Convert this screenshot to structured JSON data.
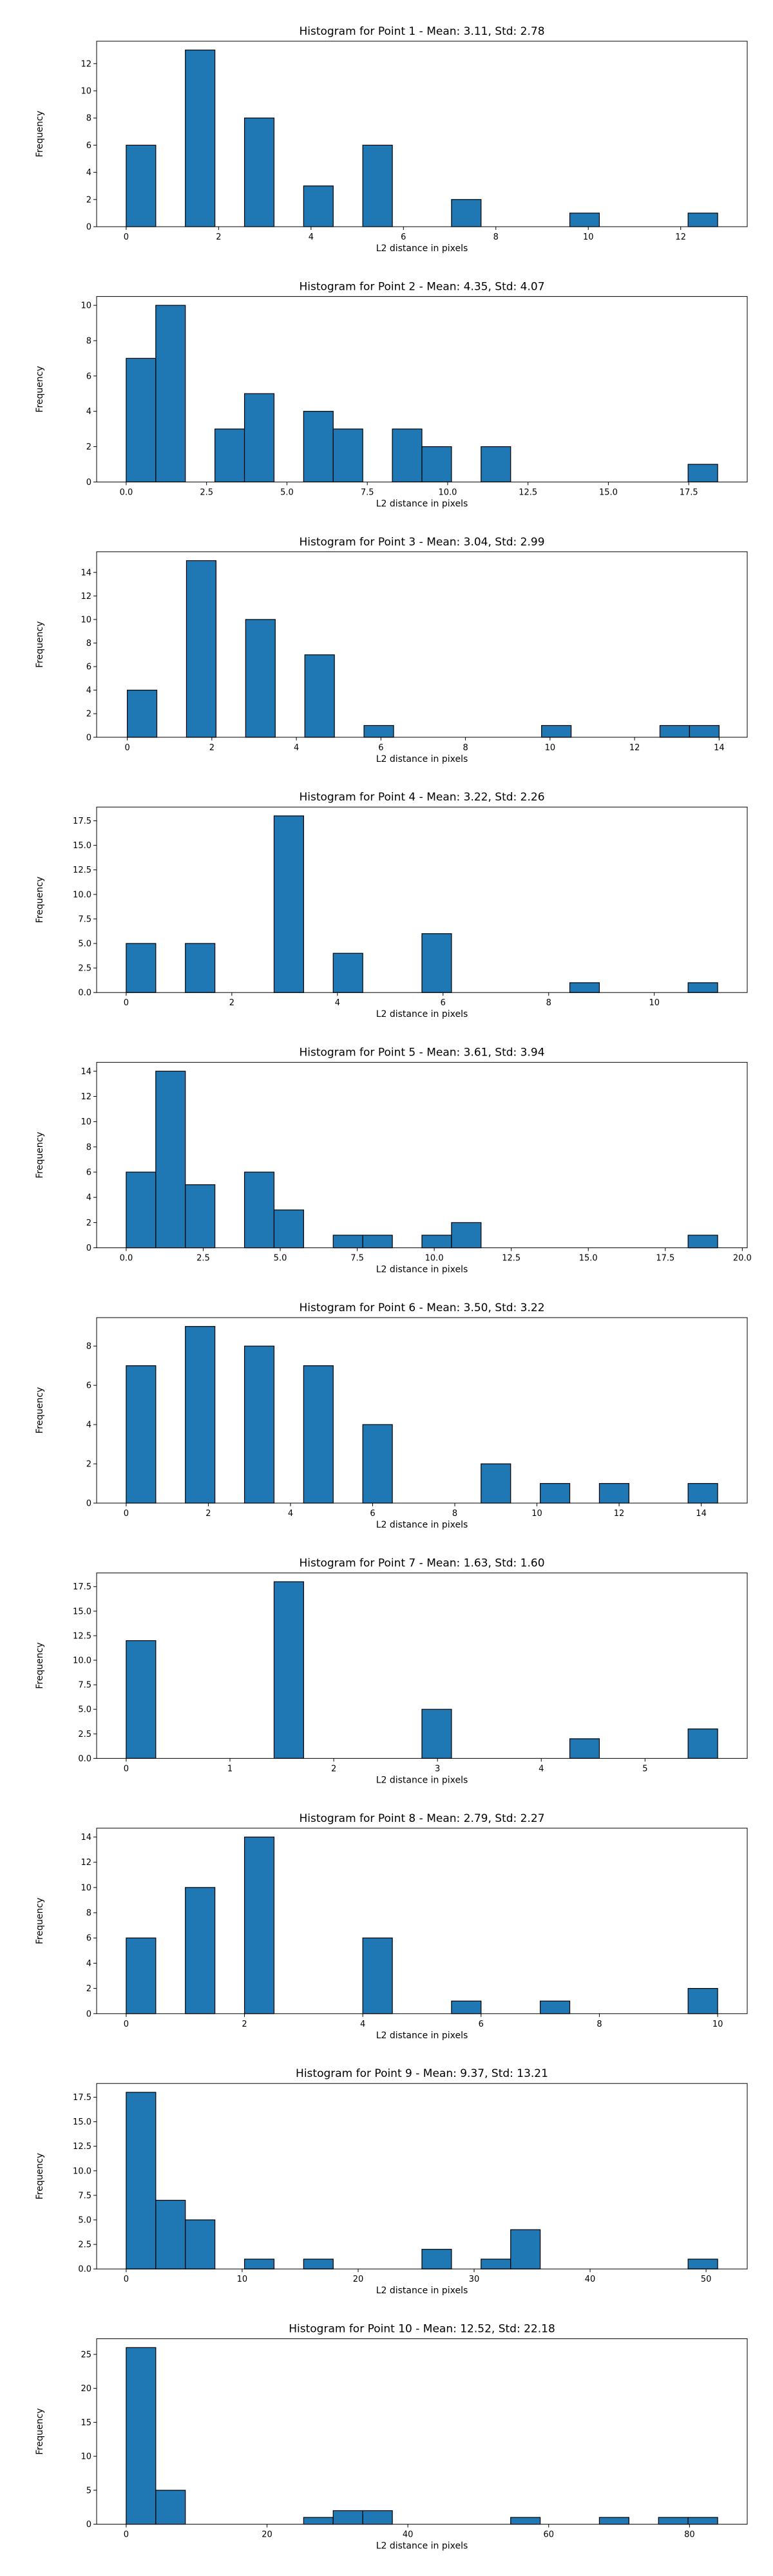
{
  "colors": {
    "bar_fill": "#1f77b4",
    "bar_edge": "#000000",
    "axes": "#000000",
    "background": "#ffffff"
  },
  "chart_data": [
    {
      "type": "bar",
      "title": "Histogram for Point 1 - Mean: 3.11, Std: 2.78",
      "xlabel": "L2 distance in pixels",
      "ylabel": "Frequency",
      "xlim": [
        -0.64,
        13.44
      ],
      "ylim": [
        0,
        13.65
      ],
      "xticks": [
        0,
        2,
        4,
        6,
        8,
        10,
        12
      ],
      "xtick_labels": [
        "0",
        "2",
        "4",
        "6",
        "8",
        "10",
        "12"
      ],
      "yticks": [
        0,
        2,
        4,
        6,
        8,
        10,
        12
      ],
      "ytick_labels": [
        "0",
        "2",
        "4",
        "6",
        "8",
        "10",
        "12"
      ],
      "bins": [
        [
          0,
          0.64,
          6
        ],
        [
          1.28,
          1.92,
          13
        ],
        [
          2.56,
          3.2,
          8
        ],
        [
          3.84,
          4.48,
          3
        ],
        [
          5.12,
          5.76,
          6
        ],
        [
          7.04,
          7.68,
          2
        ],
        [
          9.6,
          10.24,
          1
        ],
        [
          12.16,
          12.8,
          1
        ]
      ]
    },
    {
      "type": "bar",
      "title": "Histogram for Point 2 - Mean: 4.35, Std: 4.07",
      "xlabel": "L2 distance in pixels",
      "ylabel": "Frequency",
      "xlim": [
        -0.92,
        19.32
      ],
      "ylim": [
        0,
        10.5
      ],
      "xticks": [
        0,
        2.5,
        5,
        7.5,
        10,
        12.5,
        15,
        17.5
      ],
      "xtick_labels": [
        "0.0",
        "2.5",
        "5.0",
        "7.5",
        "10.0",
        "12.5",
        "15.0",
        "17.5"
      ],
      "yticks": [
        0,
        2,
        4,
        6,
        8,
        10
      ],
      "ytick_labels": [
        "0",
        "2",
        "4",
        "6",
        "8",
        "10"
      ],
      "bins": [
        [
          0,
          0.92,
          7
        ],
        [
          0.92,
          1.84,
          10
        ],
        [
          2.76,
          3.68,
          3
        ],
        [
          3.68,
          4.6,
          5
        ],
        [
          5.52,
          6.44,
          4
        ],
        [
          6.44,
          7.36,
          3
        ],
        [
          8.28,
          9.2,
          3
        ],
        [
          9.2,
          10.12,
          2
        ],
        [
          11.04,
          11.96,
          2
        ],
        [
          17.48,
          18.4,
          1
        ]
      ]
    },
    {
      "type": "bar",
      "title": "Histogram for Point 3 - Mean: 3.04, Std: 2.99",
      "xlabel": "L2 distance in pixels",
      "ylabel": "Frequency",
      "xlim": [
        -0.725,
        14.665
      ],
      "ylim": [
        0,
        15.75
      ],
      "xticks": [
        0,
        2,
        4,
        6,
        8,
        10,
        12,
        14
      ],
      "xtick_labels": [
        "0",
        "2",
        "4",
        "6",
        "8",
        "10",
        "12",
        "14"
      ],
      "yticks": [
        0,
        2,
        4,
        6,
        8,
        10,
        12,
        14
      ],
      "ytick_labels": [
        "0",
        "2",
        "4",
        "6",
        "8",
        "10",
        "12",
        "14"
      ],
      "bins": [
        [
          0,
          0.7,
          4
        ],
        [
          1.4,
          2.1,
          15
        ],
        [
          2.8,
          3.5,
          10
        ],
        [
          4.2,
          4.9,
          7
        ],
        [
          5.6,
          6.3,
          1
        ],
        [
          9.8,
          10.5,
          1
        ],
        [
          12.6,
          13.3,
          1
        ],
        [
          13.3,
          14,
          1
        ]
      ]
    },
    {
      "type": "bar",
      "title": "Histogram for Point 4 - Mean: 3.22, Std: 2.26",
      "xlabel": "L2 distance in pixels",
      "ylabel": "Frequency",
      "xlim": [
        -0.56,
        11.76
      ],
      "ylim": [
        0,
        18.9
      ],
      "xticks": [
        0,
        2,
        4,
        6,
        8,
        10
      ],
      "xtick_labels": [
        "0",
        "2",
        "4",
        "6",
        "8",
        "10"
      ],
      "yticks": [
        0,
        2.5,
        5,
        7.5,
        10,
        12.5,
        15,
        17.5
      ],
      "ytick_labels": [
        "0.0",
        "2.5",
        "5.0",
        "7.5",
        "10.0",
        "12.5",
        "15.0",
        "17.5"
      ],
      "bins": [
        [
          0,
          0.56,
          5
        ],
        [
          1.12,
          1.68,
          5
        ],
        [
          2.8,
          3.36,
          18
        ],
        [
          3.92,
          4.48,
          4
        ],
        [
          5.6,
          6.16,
          6
        ],
        [
          8.4,
          8.96,
          1
        ],
        [
          10.64,
          11.2,
          1
        ]
      ]
    },
    {
      "type": "bar",
      "title": "Histogram for Point 5 - Mean: 3.61, Std: 3.94",
      "xlabel": "L2 distance in pixels",
      "ylabel": "Frequency",
      "xlim": [
        -0.96,
        20.16
      ],
      "ylim": [
        0,
        14.7
      ],
      "xticks": [
        0,
        2.5,
        5,
        7.5,
        10,
        12.5,
        15,
        17.5,
        20
      ],
      "xtick_labels": [
        "0.0",
        "2.5",
        "5.0",
        "7.5",
        "10.0",
        "12.5",
        "15.0",
        "17.5",
        "20.0"
      ],
      "yticks": [
        0,
        2,
        4,
        6,
        8,
        10,
        12,
        14
      ],
      "ytick_labels": [
        "0",
        "2",
        "4",
        "6",
        "8",
        "10",
        "12",
        "14"
      ],
      "bins": [
        [
          0,
          0.96,
          6
        ],
        [
          0.96,
          1.92,
          14
        ],
        [
          1.92,
          2.88,
          5
        ],
        [
          3.84,
          4.8,
          6
        ],
        [
          4.8,
          5.76,
          3
        ],
        [
          6.72,
          7.68,
          1
        ],
        [
          7.68,
          8.64,
          1
        ],
        [
          9.6,
          10.56,
          1
        ],
        [
          10.56,
          11.52,
          2
        ],
        [
          18.24,
          19.2,
          1
        ]
      ]
    },
    {
      "type": "bar",
      "title": "Histogram for Point 6 - Mean: 3.50, Std: 3.22",
      "xlabel": "L2 distance in pixels",
      "ylabel": "Frequency",
      "xlim": [
        -0.72,
        15.12
      ],
      "ylim": [
        0,
        9.45
      ],
      "xticks": [
        0,
        2,
        4,
        6,
        8,
        10,
        12,
        14
      ],
      "xtick_labels": [
        "0",
        "2",
        "4",
        "6",
        "8",
        "10",
        "12",
        "14"
      ],
      "yticks": [
        0,
        2,
        4,
        6,
        8
      ],
      "ytick_labels": [
        "0",
        "2",
        "4",
        "6",
        "8"
      ],
      "bins": [
        [
          0,
          0.72,
          7
        ],
        [
          1.44,
          2.16,
          9
        ],
        [
          2.88,
          3.6,
          8
        ],
        [
          4.32,
          5.04,
          7
        ],
        [
          5.76,
          6.48,
          4
        ],
        [
          8.64,
          9.36,
          2
        ],
        [
          10.08,
          10.8,
          1
        ],
        [
          11.52,
          12.24,
          1
        ],
        [
          13.68,
          14.4,
          1
        ]
      ]
    },
    {
      "type": "bar",
      "title": "Histogram for Point 7 - Mean: 1.63, Std: 1.60",
      "xlabel": "L2 distance in pixels",
      "ylabel": "Frequency",
      "xlim": [
        -0.285,
        5.985
      ],
      "ylim": [
        0,
        18.9
      ],
      "xticks": [
        0,
        1,
        2,
        3,
        4,
        5
      ],
      "xtick_labels": [
        "0",
        "1",
        "2",
        "3",
        "4",
        "5"
      ],
      "yticks": [
        0,
        2.5,
        5,
        7.5,
        10,
        12.5,
        15,
        17.5
      ],
      "ytick_labels": [
        "0.0",
        "2.5",
        "5.0",
        "7.5",
        "10.0",
        "12.5",
        "15.0",
        "17.5"
      ],
      "bins": [
        [
          0,
          0.285,
          12
        ],
        [
          1.425,
          1.71,
          18
        ],
        [
          2.85,
          3.135,
          5
        ],
        [
          4.275,
          4.56,
          2
        ],
        [
          5.415,
          5.7,
          3
        ]
      ]
    },
    {
      "type": "bar",
      "title": "Histogram for Point 8 - Mean: 2.79, Std: 2.27",
      "xlabel": "L2 distance in pixels",
      "ylabel": "Frequency",
      "xlim": [
        -0.5,
        10.5
      ],
      "ylim": [
        0,
        14.7
      ],
      "xticks": [
        0,
        2,
        4,
        6,
        8,
        10
      ],
      "xtick_labels": [
        "0",
        "2",
        "4",
        "6",
        "8",
        "10"
      ],
      "yticks": [
        0,
        2,
        4,
        6,
        8,
        10,
        12,
        14
      ],
      "ytick_labels": [
        "0",
        "2",
        "4",
        "6",
        "8",
        "10",
        "12",
        "14"
      ],
      "bins": [
        [
          0,
          0.5,
          6
        ],
        [
          1,
          1.5,
          10
        ],
        [
          2,
          2.5,
          14
        ],
        [
          4,
          4.5,
          6
        ],
        [
          5.5,
          6,
          1
        ],
        [
          7,
          7.5,
          1
        ],
        [
          9.5,
          10,
          2
        ]
      ]
    },
    {
      "type": "bar",
      "title": "Histogram for Point 9 - Mean: 9.37, Std: 13.21",
      "xlabel": "L2 distance in pixels",
      "ylabel": "Frequency",
      "xlim": [
        -2.55,
        53.55
      ],
      "ylim": [
        0,
        18.9
      ],
      "xticks": [
        0,
        10,
        20,
        30,
        40,
        50
      ],
      "xtick_labels": [
        "0",
        "10",
        "20",
        "30",
        "40",
        "50"
      ],
      "yticks": [
        0,
        2.5,
        5,
        7.5,
        10,
        12.5,
        15,
        17.5
      ],
      "ytick_labels": [
        "0.0",
        "2.5",
        "5.0",
        "7.5",
        "10.0",
        "12.5",
        "15.0",
        "17.5"
      ],
      "bins": [
        [
          0,
          2.55,
          18
        ],
        [
          2.55,
          5.1,
          7
        ],
        [
          5.1,
          7.65,
          5
        ],
        [
          10.2,
          12.75,
          1
        ],
        [
          15.3,
          17.85,
          1
        ],
        [
          25.5,
          28.05,
          2
        ],
        [
          30.6,
          33.15,
          1
        ],
        [
          33.15,
          35.7,
          4
        ],
        [
          48.45,
          51,
          1
        ]
      ]
    },
    {
      "type": "bar",
      "title": "Histogram for Point 10 - Mean: 12.52, Std: 22.18",
      "xlabel": "L2 distance in pixels",
      "ylabel": "Frequency",
      "xlim": [
        -4.2,
        88.2
      ],
      "ylim": [
        0,
        27.3
      ],
      "xticks": [
        0,
        20,
        40,
        60,
        80
      ],
      "xtick_labels": [
        "0",
        "20",
        "40",
        "60",
        "80"
      ],
      "yticks": [
        0,
        5,
        10,
        15,
        20,
        25
      ],
      "ytick_labels": [
        "0",
        "5",
        "10",
        "15",
        "20",
        "25"
      ],
      "bins": [
        [
          0,
          4.2,
          26
        ],
        [
          4.2,
          8.4,
          5
        ],
        [
          25.2,
          29.4,
          1
        ],
        [
          29.4,
          33.6,
          2
        ],
        [
          33.6,
          37.8,
          2
        ],
        [
          54.6,
          58.8,
          1
        ],
        [
          67.2,
          71.4,
          1
        ],
        [
          75.6,
          79.8,
          1
        ],
        [
          79.8,
          84,
          1
        ]
      ]
    }
  ]
}
